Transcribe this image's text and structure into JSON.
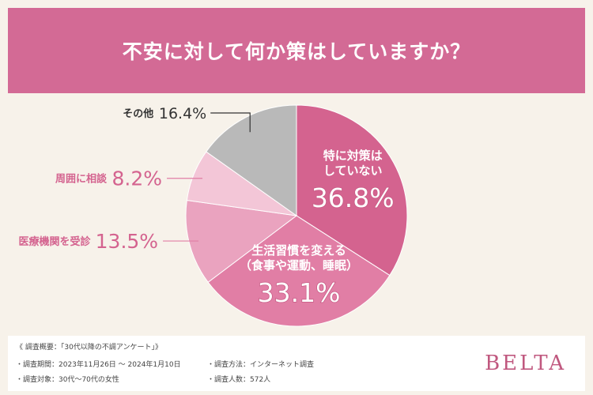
{
  "header": {
    "title": "不安に対して何か策はしていますか？"
  },
  "chart_data": {
    "type": "pie",
    "title": "不安に対して何か策はしていますか？",
    "slices": [
      {
        "label": "特に対策はしていない",
        "label_lines": [
          "特に対策は",
          "していない"
        ],
        "value": 36.8,
        "display": "36.8%",
        "color": "#d4638f"
      },
      {
        "label": "生活習慣を変える（食事や運動、睡眠）",
        "label_lines": [
          "生活習慣を変える",
          "（食事や運動、睡眠）"
        ],
        "value": 33.1,
        "display": "33.1%",
        "color": "#e17ea5"
      },
      {
        "label": "医療機関を受診",
        "label_lines": [
          "医療機関を受診"
        ],
        "value": 13.5,
        "display": "13.5%",
        "color": "#eaa3bf"
      },
      {
        "label": "周囲に相談",
        "label_lines": [
          "周囲に相談"
        ],
        "value": 8.2,
        "display": "8.2%",
        "color": "#f3c6d7"
      },
      {
        "label": "その他",
        "label_lines": [
          "その他"
        ],
        "value": 16.4,
        "display": "16.4%",
        "color": "#b9b9b9"
      }
    ]
  },
  "footer": {
    "overview": "《 調査概要：「30代以降の不調アンケート」》",
    "period": "・調査期間：2023年11月26日 ～ 2024年1月10日",
    "target": "・調査対象：30代～70代の女性",
    "method": "・調査方法：インターネット調査",
    "count": "・調査人数：572人",
    "brand": "BELTA"
  }
}
